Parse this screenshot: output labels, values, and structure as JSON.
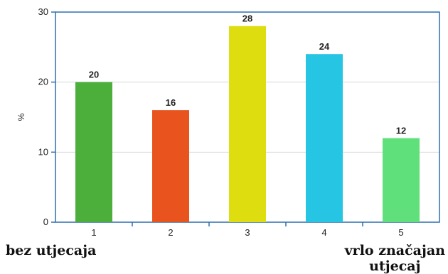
{
  "chart_data": {
    "type": "bar",
    "title": "",
    "xlabel": "",
    "ylabel": "%",
    "ylim": [
      0,
      30
    ],
    "yticks": [
      0,
      10,
      20,
      30
    ],
    "grid": true,
    "categories": [
      "1",
      "2",
      "3",
      "4",
      "5"
    ],
    "values": [
      20,
      16,
      28,
      24,
      12
    ],
    "data_labels": [
      "20",
      "16",
      "28",
      "24",
      "12"
    ],
    "colors": [
      "#4caf3c",
      "#e8531e",
      "#dedd0f",
      "#25c5e3",
      "#5fe07a"
    ]
  },
  "annotations": {
    "left": "bez utjecaja",
    "right_line1": "vrlo značajan",
    "right_line2": "utjecaj"
  },
  "style": {
    "axis_color": "#2f6fae",
    "grid_color": "#d6d6d6"
  }
}
